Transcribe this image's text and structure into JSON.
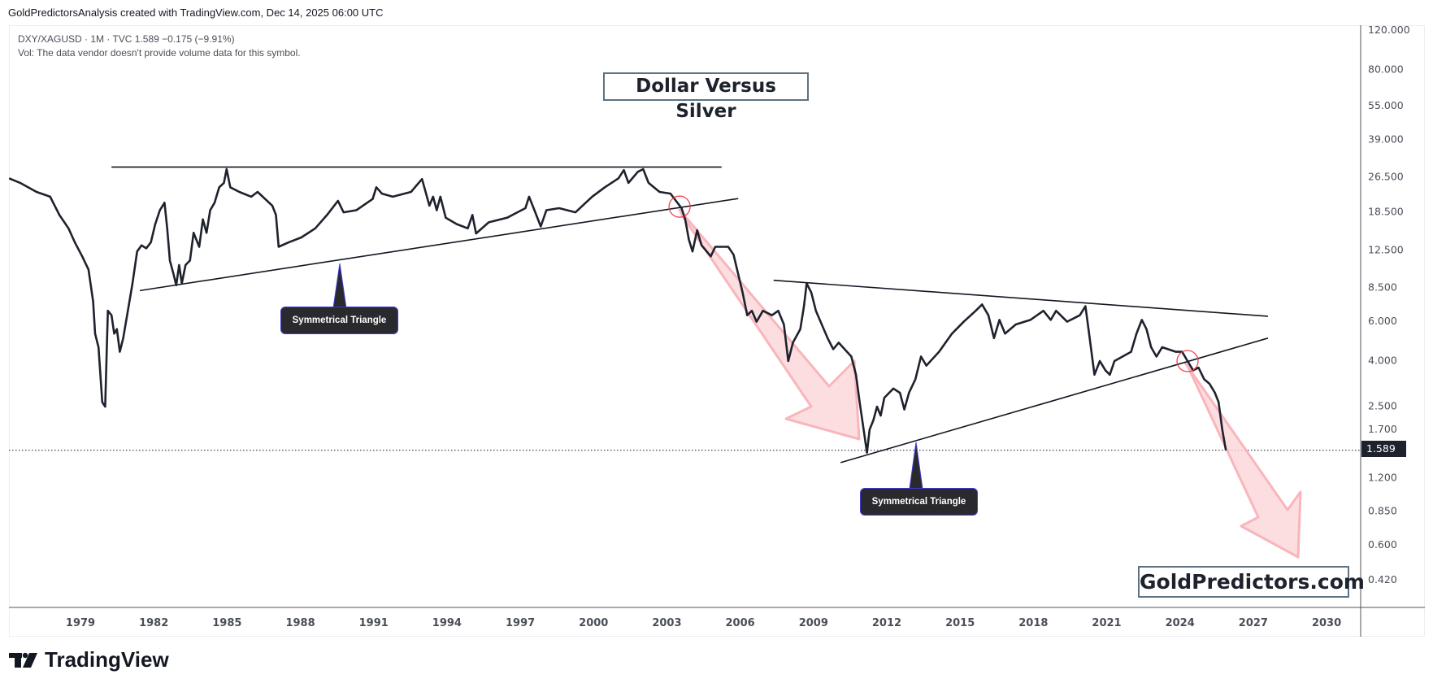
{
  "header": {
    "attribution": "GoldPredictorsAnalysis created with TradingView.com, Dec 14, 2025 06:00 UTC"
  },
  "legend": {
    "symbol_line": "DXY/XAGUSD · 1M · TVC  1.589  −0.175 (−9.91%)",
    "volume_note": "Vol: The data vendor doesn't provide volume data for this symbol."
  },
  "annotations": {
    "title": "Dollar Versus Silver",
    "brand": "GoldPredictors.com",
    "callout_1": "Symmetrical Triangle",
    "callout_2": "Symmetrical Triangle"
  },
  "price_tag": "1.589",
  "footer": {
    "logo_text": "TradingView"
  },
  "colors": {
    "line": "#1e222d",
    "arrow": "#f7a1a8",
    "circle": "#f23645",
    "trend": "#131722"
  },
  "chart_data": {
    "type": "line",
    "scale": "log",
    "ylim": [
      0.42,
      120
    ],
    "xlim": [
      1975.8,
      2031.0
    ],
    "y_ticks": [
      "120.000",
      "80.000",
      "55.000",
      "39.000",
      "26.500",
      "18.500",
      "12.500",
      "8.500",
      "6.000",
      "4.000",
      "2.500",
      "1.700",
      "1.200",
      "0.850",
      "0.600",
      "0.420"
    ],
    "x_ticks": [
      "1979",
      "1982",
      "1985",
      "1988",
      "1991",
      "1994",
      "1997",
      "2000",
      "2003",
      "2006",
      "2009",
      "2012",
      "2015",
      "2018",
      "2021",
      "2024",
      "2027",
      "2030"
    ],
    "last_value": 1.589,
    "grid": false,
    "series": [
      {
        "points": [
          [
            1976.08,
            26.1
          ],
          [
            1976.53,
            24.9
          ],
          [
            1977.2,
            22.7
          ],
          [
            1977.76,
            21.6
          ],
          [
            1978.14,
            17.9
          ],
          [
            1978.51,
            15.6
          ],
          [
            1978.77,
            13.5
          ],
          [
            1979.07,
            11.7
          ],
          [
            1979.33,
            10.2
          ],
          [
            1979.52,
            7.34
          ],
          [
            1979.6,
            5.28
          ],
          [
            1979.74,
            4.59
          ],
          [
            1979.89,
            2.61
          ],
          [
            1980.01,
            2.49
          ],
          [
            1980.12,
            6.68
          ],
          [
            1980.27,
            6.38
          ],
          [
            1980.38,
            5.28
          ],
          [
            1980.49,
            5.53
          ],
          [
            1980.61,
            4.38
          ],
          [
            1980.75,
            5.04
          ],
          [
            1980.94,
            6.68
          ],
          [
            1981.13,
            8.85
          ],
          [
            1981.32,
            12.3
          ],
          [
            1981.5,
            13.1
          ],
          [
            1981.69,
            12.7
          ],
          [
            1981.88,
            13.5
          ],
          [
            1982.06,
            16.3
          ],
          [
            1982.25,
            18.8
          ],
          [
            1982.44,
            20.3
          ],
          [
            1982.55,
            15.6
          ],
          [
            1982.66,
            11.2
          ],
          [
            1982.81,
            9.73
          ],
          [
            1982.92,
            8.69
          ],
          [
            1983.04,
            10.7
          ],
          [
            1983.15,
            8.85
          ],
          [
            1983.3,
            10.7
          ],
          [
            1983.48,
            11.2
          ],
          [
            1983.63,
            14.9
          ],
          [
            1983.86,
            12.9
          ],
          [
            1984.01,
            17.1
          ],
          [
            1984.16,
            14.9
          ],
          [
            1984.31,
            18.8
          ],
          [
            1984.49,
            20.3
          ],
          [
            1984.68,
            23.8
          ],
          [
            1984.87,
            24.9
          ],
          [
            1984.98,
            28.7
          ],
          [
            1985.13,
            23.8
          ],
          [
            1985.5,
            22.7
          ],
          [
            1985.99,
            21.6
          ],
          [
            1986.25,
            22.7
          ],
          [
            1986.85,
            19.7
          ],
          [
            1987.0,
            17.9
          ],
          [
            1987.11,
            12.9
          ],
          [
            1987.52,
            13.5
          ],
          [
            1988.04,
            14.2
          ],
          [
            1988.61,
            15.6
          ],
          [
            1989.09,
            17.9
          ],
          [
            1989.54,
            20.7
          ],
          [
            1989.77,
            18.4
          ],
          [
            1990.29,
            18.8
          ],
          [
            1990.96,
            21.1
          ],
          [
            1991.11,
            23.8
          ],
          [
            1991.34,
            22.3
          ],
          [
            1991.78,
            21.6
          ],
          [
            1992.53,
            22.7
          ],
          [
            1992.98,
            25.9
          ],
          [
            1993.28,
            19.7
          ],
          [
            1993.43,
            21.6
          ],
          [
            1993.58,
            18.8
          ],
          [
            1993.73,
            21.6
          ],
          [
            1993.95,
            17.4
          ],
          [
            1994.4,
            16.3
          ],
          [
            1994.85,
            15.6
          ],
          [
            1995.04,
            17.9
          ],
          [
            1995.19,
            14.8
          ],
          [
            1995.71,
            16.6
          ],
          [
            1996.46,
            17.4
          ],
          [
            1997.21,
            19.2
          ],
          [
            1997.36,
            21.6
          ],
          [
            1997.58,
            18.8
          ],
          [
            1997.84,
            15.9
          ],
          [
            1998.07,
            18.8
          ],
          [
            1998.59,
            19.2
          ],
          [
            1999.26,
            18.4
          ],
          [
            1999.94,
            21.6
          ],
          [
            2000.46,
            23.8
          ],
          [
            2001.02,
            26.1
          ],
          [
            2001.24,
            28.4
          ],
          [
            2001.43,
            24.9
          ],
          [
            2001.81,
            27.9
          ],
          [
            2002.03,
            28.7
          ],
          [
            2002.25,
            24.9
          ],
          [
            2002.7,
            22.7
          ],
          [
            2003.15,
            22.3
          ],
          [
            2003.6,
            19.2
          ],
          [
            2003.75,
            17.1
          ],
          [
            2003.9,
            13.9
          ],
          [
            2004.05,
            12.3
          ],
          [
            2004.24,
            15.3
          ],
          [
            2004.42,
            13.1
          ],
          [
            2004.8,
            11.7
          ],
          [
            2004.98,
            12.9
          ],
          [
            2005.51,
            12.9
          ],
          [
            2005.73,
            11.9
          ],
          [
            2005.92,
            9.73
          ],
          [
            2006.1,
            8.06
          ],
          [
            2006.29,
            6.38
          ],
          [
            2006.48,
            6.68
          ],
          [
            2006.67,
            5.97
          ],
          [
            2006.93,
            6.68
          ],
          [
            2007.3,
            6.38
          ],
          [
            2007.56,
            6.68
          ],
          [
            2007.79,
            5.8
          ],
          [
            2007.97,
            3.98
          ],
          [
            2008.16,
            4.81
          ],
          [
            2008.46,
            5.53
          ],
          [
            2008.61,
            7.0
          ],
          [
            2008.72,
            8.85
          ],
          [
            2008.91,
            8.06
          ],
          [
            2009.1,
            6.68
          ],
          [
            2009.58,
            5.04
          ],
          [
            2009.81,
            4.5
          ],
          [
            2010.03,
            4.81
          ],
          [
            2010.55,
            4.17
          ],
          [
            2010.74,
            3.46
          ],
          [
            2010.89,
            2.61
          ],
          [
            2011.08,
            1.88
          ],
          [
            2011.19,
            1.55
          ],
          [
            2011.3,
            1.97
          ],
          [
            2011.45,
            2.16
          ],
          [
            2011.6,
            2.49
          ],
          [
            2011.75,
            2.27
          ],
          [
            2011.9,
            2.73
          ],
          [
            2012.27,
            3.0
          ],
          [
            2012.54,
            2.87
          ],
          [
            2012.72,
            2.42
          ],
          [
            2012.91,
            2.87
          ],
          [
            2013.17,
            3.3
          ],
          [
            2013.4,
            4.17
          ],
          [
            2013.62,
            3.8
          ],
          [
            2014.14,
            4.38
          ],
          [
            2014.67,
            5.28
          ],
          [
            2015.15,
            5.97
          ],
          [
            2015.64,
            6.68
          ],
          [
            2015.9,
            7.13
          ],
          [
            2016.16,
            6.38
          ],
          [
            2016.39,
            5.04
          ],
          [
            2016.61,
            6.08
          ],
          [
            2016.84,
            5.28
          ],
          [
            2017.28,
            5.8
          ],
          [
            2017.88,
            6.08
          ],
          [
            2018.41,
            6.68
          ],
          [
            2018.71,
            6.08
          ],
          [
            2018.93,
            6.68
          ],
          [
            2019.38,
            5.97
          ],
          [
            2019.9,
            6.38
          ],
          [
            2020.13,
            7.0
          ],
          [
            2020.28,
            5.28
          ],
          [
            2020.5,
            3.46
          ],
          [
            2020.72,
            3.98
          ],
          [
            2020.95,
            3.62
          ],
          [
            2021.13,
            3.46
          ],
          [
            2021.32,
            3.98
          ],
          [
            2022.0,
            4.38
          ],
          [
            2022.22,
            5.28
          ],
          [
            2022.44,
            6.08
          ],
          [
            2022.63,
            5.53
          ],
          [
            2022.82,
            4.59
          ],
          [
            2023.04,
            4.17
          ],
          [
            2023.27,
            4.59
          ],
          [
            2023.83,
            4.38
          ],
          [
            2024.09,
            4.38
          ],
          [
            2024.31,
            3.98
          ],
          [
            2024.54,
            3.62
          ],
          [
            2024.76,
            3.72
          ],
          [
            2024.99,
            3.3
          ],
          [
            2025.21,
            3.15
          ],
          [
            2025.43,
            2.87
          ],
          [
            2025.58,
            2.61
          ],
          [
            2025.73,
            1.97
          ],
          [
            2025.88,
            1.589
          ]
        ]
      }
    ],
    "trendlines": [
      {
        "from": [
          1980.27,
          29.3
        ],
        "to": [
          2005.24,
          29.3
        ]
      },
      {
        "from": [
          1981.43,
          8.22
        ],
        "to": [
          2005.92,
          21.2
        ]
      },
      {
        "from": [
          2007.37,
          9.14
        ],
        "to": [
          2027.6,
          6.31
        ]
      },
      {
        "from": [
          2010.11,
          1.4
        ],
        "to": [
          2027.6,
          5.04
        ]
      }
    ],
    "breakout_markers": [
      [
        2003.52,
        19.5
      ],
      [
        2024.31,
        3.98
      ]
    ]
  }
}
